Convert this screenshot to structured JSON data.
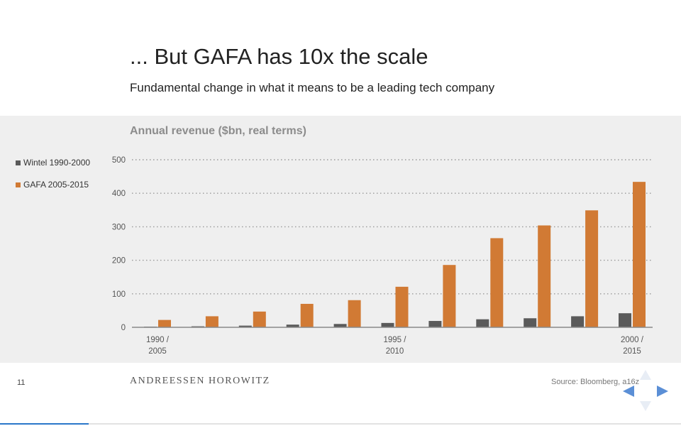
{
  "slide": {
    "title": "... But GAFA has 10x the scale",
    "subtitle": "Fundamental change in what it means to be a leading tech company",
    "page_number": "11",
    "brand": "ANDREESSEN HOROWITZ",
    "source": "Source: Bloomberg, a16z",
    "progress": 0.13
  },
  "chart_data": {
    "type": "bar",
    "title": "Annual revenue ($bn, real terms)",
    "categories": [
      "1990 / 2005",
      "",
      "",
      "",
      "",
      "1995 / 2010",
      "",
      "",
      "",
      "",
      "2000 / 2015"
    ],
    "category_lines": [
      [
        "1990 /",
        "2005"
      ],
      [
        "",
        ""
      ],
      [
        "",
        ""
      ],
      [
        "",
        ""
      ],
      [
        "",
        ""
      ],
      [
        "1995 /",
        "2010"
      ],
      [
        "",
        ""
      ],
      [
        "",
        ""
      ],
      [
        "",
        ""
      ],
      [
        "",
        ""
      ],
      [
        "2000 /",
        "2015"
      ]
    ],
    "series": [
      {
        "name": "Wintel 1990-2000",
        "color": "#5a5a5a",
        "values": [
          2,
          3,
          5,
          8,
          10,
          13,
          19,
          24,
          27,
          33,
          42
        ]
      },
      {
        "name": "GAFA 2005-2015",
        "color": "#d17a34",
        "values": [
          22,
          33,
          47,
          70,
          81,
          121,
          186,
          266,
          304,
          349,
          434
        ]
      }
    ],
    "yticks": [
      0,
      100,
      200,
      300,
      400,
      500
    ],
    "ylim": [
      0,
      500
    ],
    "grid": true,
    "legend_position": "left"
  }
}
